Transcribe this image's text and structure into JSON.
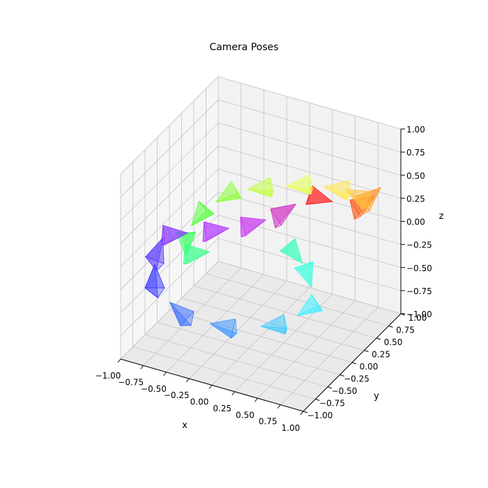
{
  "chart_data": {
    "type": "scatter",
    "title": "Camera Poses",
    "xlabel": "x",
    "ylabel": "y",
    "zlabel": "z",
    "xlim": [
      -1.0,
      1.0
    ],
    "ylim": [
      -1.0,
      1.0
    ],
    "zlim": [
      -1.0,
      1.0
    ],
    "x_ticks": [
      "−1.00",
      "−0.75",
      "−0.50",
      "−0.25",
      "0.00",
      "0.25",
      "0.50",
      "0.75",
      "1.00"
    ],
    "y_ticks": [
      "−1.00",
      "−0.75",
      "−0.50",
      "−0.25",
      "0.00",
      "0.25",
      "0.50",
      "0.75",
      "1.00"
    ],
    "z_ticks": [
      "−1.00",
      "−0.75",
      "−0.50",
      "−0.25",
      "0.00",
      "0.25",
      "0.50",
      "0.75",
      "1.00"
    ],
    "grid": true,
    "series": [
      {
        "name": "",
        "color": "#ff2a2a",
        "x": 0.0,
        "y": 1.0,
        "z": 0.0
      },
      {
        "name": "",
        "color": "#ff5a1e",
        "x": 0.5,
        "y": 1.0,
        "z": 0.0
      },
      {
        "name": "",
        "color": "#ff9a30",
        "x": 0.8,
        "y": 0.6,
        "z": 0.35
      },
      {
        "name": "",
        "color": "#ffc040",
        "x": 1.0,
        "y": 0.3,
        "z": 0.6
      },
      {
        "name": "",
        "color": "#ffe850",
        "x": 0.95,
        "y": 0.0,
        "z": 0.85
      },
      {
        "name": "",
        "color": "#e8ff50",
        "x": 0.7,
        "y": -0.3,
        "z": 1.0
      },
      {
        "name": "",
        "color": "#c0ff40",
        "x": 0.35,
        "y": -0.45,
        "z": 0.95
      },
      {
        "name": "",
        "color": "#8cff3c",
        "x": 0.0,
        "y": -0.5,
        "z": 0.85
      },
      {
        "name": "",
        "color": "#5aff40",
        "x": -0.3,
        "y": -0.55,
        "z": 0.6
      },
      {
        "name": "",
        "color": "#40ff60",
        "x": -0.5,
        "y": -0.6,
        "z": 0.3
      },
      {
        "name": "",
        "color": "#40ff90",
        "x": -0.55,
        "y": -0.5,
        "z": 0.0
      },
      {
        "name": "",
        "color": "#40ffc0",
        "x": 0.0,
        "y": 0.55,
        "z": -0.3
      },
      {
        "name": "",
        "color": "#40ffe0",
        "x": 0.15,
        "y": 0.6,
        "z": -0.5
      },
      {
        "name": "",
        "color": "#40f0ff",
        "x": 0.35,
        "y": 0.5,
        "z": -0.8
      },
      {
        "name": "",
        "color": "#40c8ff",
        "x": 0.1,
        "y": 0.3,
        "z": -1.0
      },
      {
        "name": "",
        "color": "#3c96ff",
        "x": -0.3,
        "y": 0.0,
        "z": -1.0
      },
      {
        "name": "",
        "color": "#3c6eff",
        "x": -0.7,
        "y": -0.2,
        "z": -0.9
      },
      {
        "name": "",
        "color": "#3c3cff",
        "x": -1.0,
        "y": -0.3,
        "z": -0.6
      },
      {
        "name": "",
        "color": "#5a3cff",
        "x": -1.0,
        "y": -0.3,
        "z": -0.3
      },
      {
        "name": "",
        "color": "#8c3cff",
        "x": -0.9,
        "y": -0.3,
        "z": 0.0
      },
      {
        "name": "",
        "color": "#b43cff",
        "x": -0.5,
        "y": -0.2,
        "z": 0.1
      },
      {
        "name": "",
        "color": "#c83cf0",
        "x": -0.3,
        "y": 0.2,
        "z": 0.0
      },
      {
        "name": "",
        "color": "#d23cc8",
        "x": -0.1,
        "y": 0.5,
        "z": 0.0
      }
    ]
  }
}
